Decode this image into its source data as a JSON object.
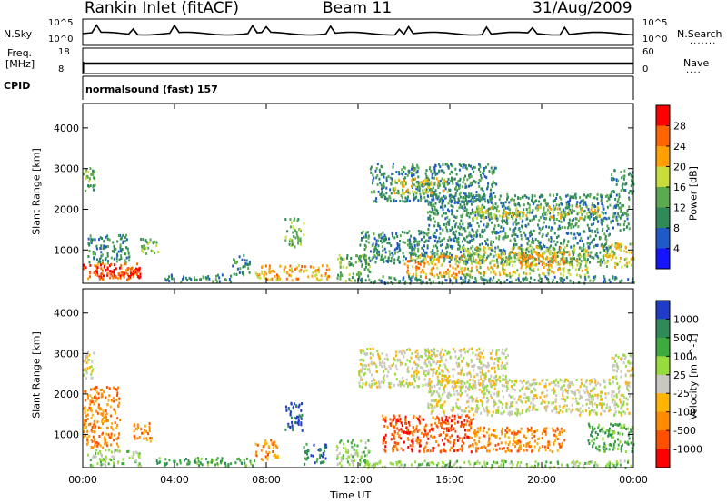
{
  "header": {
    "station": "Rankin Inlet (fitACF)",
    "beam": "Beam 11",
    "date": "31/Aug/2009"
  },
  "top_panels": {
    "nsky_label": "N.Sky",
    "nsky_max": "10^5",
    "nsky_min": "10^0",
    "nsearch_label": "N.Search",
    "nsearch_max": "10^5",
    "nsearch_min": "10^0",
    "freq_label": "Freq.",
    "freq_unit": "[MHz]",
    "freq_max": "18",
    "freq_min": "8",
    "nave_label": "Nave",
    "nave_max": "60",
    "nave_min": "0",
    "cpid_label": "CPID",
    "cpid_value": "normalsound (fast) 157"
  },
  "chart_data": [
    {
      "type": "heatmap",
      "name": "power",
      "ylabel": "Slant Range [km]",
      "xlabel": "",
      "x_ticks": [
        "00:00",
        "04:00",
        "08:00",
        "12:00",
        "16:00",
        "20:00",
        "00:00"
      ],
      "y_ticks": [
        1000,
        2000,
        3000,
        4000
      ],
      "ylim": [
        180,
        4600
      ],
      "xlim_hours": [
        0,
        24
      ],
      "colorbar": {
        "label": "Power [dB]",
        "ticks": [
          "4",
          "8",
          "12",
          "16",
          "20",
          "24",
          "28"
        ],
        "colors": [
          "#1414ff",
          "#1e5ac8",
          "#2e8b57",
          "#5aaa50",
          "#c8dc3c",
          "#ffa000",
          "#ff6400",
          "#ff0000"
        ]
      },
      "regions": [
        {
          "t0": 0.0,
          "t1": 0.5,
          "r0": 2400,
          "r1": 3100,
          "level": 3
        },
        {
          "t0": 0.0,
          "t1": 2.4,
          "r0": 300,
          "r1": 700,
          "level": 6
        },
        {
          "t0": 0.2,
          "t1": 2.0,
          "r0": 700,
          "r1": 1400,
          "level": 2
        },
        {
          "t0": 0.6,
          "t1": 2.6,
          "r0": 300,
          "r1": 600,
          "level": 7
        },
        {
          "t0": 2.5,
          "t1": 3.3,
          "r0": 900,
          "r1": 1300,
          "level": 3
        },
        {
          "t0": 3.5,
          "t1": 6.5,
          "r0": 250,
          "r1": 420,
          "level": 2
        },
        {
          "t0": 6.5,
          "t1": 7.3,
          "r0": 400,
          "r1": 900,
          "level": 2
        },
        {
          "t0": 7.5,
          "t1": 10.8,
          "r0": 280,
          "r1": 650,
          "level": 5
        },
        {
          "t0": 8.8,
          "t1": 9.6,
          "r0": 1100,
          "r1": 1800,
          "level": 3
        },
        {
          "t0": 11.0,
          "t1": 12.5,
          "r0": 250,
          "r1": 900,
          "level": 3
        },
        {
          "t0": 12.5,
          "t1": 18.0,
          "r0": 2200,
          "r1": 3150,
          "level": 2
        },
        {
          "t0": 13.5,
          "t1": 16.0,
          "r0": 2400,
          "r1": 2800,
          "level": 4
        },
        {
          "t0": 15.0,
          "t1": 23.8,
          "r0": 1500,
          "r1": 2400,
          "level": 2
        },
        {
          "t0": 17.0,
          "t1": 22.5,
          "r0": 1800,
          "r1": 2100,
          "level": 4
        },
        {
          "t0": 12.0,
          "t1": 23.0,
          "r0": 700,
          "r1": 1500,
          "level": 2
        },
        {
          "t0": 14.0,
          "t1": 16.5,
          "r0": 350,
          "r1": 900,
          "level": 5
        },
        {
          "t0": 16.5,
          "t1": 22.0,
          "r0": 400,
          "r1": 1100,
          "level": 4
        },
        {
          "t0": 19.0,
          "t1": 21.0,
          "r0": 600,
          "r1": 1000,
          "level": 5
        },
        {
          "t0": 22.5,
          "t1": 24.0,
          "r0": 600,
          "r1": 1200,
          "level": 4
        },
        {
          "t0": 23.0,
          "t1": 24.0,
          "r0": 2400,
          "r1": 3000,
          "level": 2
        },
        {
          "t0": 12.0,
          "t1": 24.0,
          "r0": 200,
          "r1": 380,
          "level": 2
        }
      ]
    },
    {
      "type": "heatmap",
      "name": "velocity",
      "ylabel": "Slant Range [km]",
      "xlabel": "Time UT",
      "x_ticks": [
        "00:00",
        "04:00",
        "08:00",
        "12:00",
        "16:00",
        "20:00",
        "00:00"
      ],
      "y_ticks": [
        1000,
        2000,
        3000,
        4000
      ],
      "ylim": [
        180,
        4600
      ],
      "xlim_hours": [
        0,
        24
      ],
      "colorbar": {
        "label": "Velocity [m s^-1]",
        "ticks": [
          "1000",
          "500",
          "100",
          "25",
          "-25",
          "-100",
          "-500",
          "-1000"
        ],
        "colors": [
          "#1e3cc8",
          "#2e8b57",
          "#3caa3c",
          "#96dc3c",
          "#c8c8c0",
          "#ffb400",
          "#ff8c00",
          "#ff5000",
          "#ff0000"
        ]
      },
      "regions": [
        {
          "t0": 0.0,
          "t1": 0.5,
          "r0": 2400,
          "r1": 3100,
          "level": 4
        },
        {
          "t0": 0.0,
          "t1": 1.6,
          "r0": 700,
          "r1": 2200,
          "level": 6
        },
        {
          "t0": 0.2,
          "t1": 2.5,
          "r0": 250,
          "r1": 650,
          "level": 3
        },
        {
          "t0": 2.2,
          "t1": 3.0,
          "r0": 850,
          "r1": 1300,
          "level": 6
        },
        {
          "t0": 3.0,
          "t1": 7.5,
          "r0": 250,
          "r1": 450,
          "level": 2
        },
        {
          "t0": 7.5,
          "t1": 8.5,
          "r0": 400,
          "r1": 900,
          "level": 6
        },
        {
          "t0": 8.8,
          "t1": 9.6,
          "r0": 1100,
          "r1": 1800,
          "level": 0
        },
        {
          "t0": 9.6,
          "t1": 10.6,
          "r0": 280,
          "r1": 800,
          "level": 1
        },
        {
          "t0": 11.0,
          "t1": 12.5,
          "r0": 250,
          "r1": 900,
          "level": 3
        },
        {
          "t0": 12.0,
          "t1": 18.5,
          "r0": 2200,
          "r1": 3150,
          "level": 4
        },
        {
          "t0": 15.0,
          "t1": 23.8,
          "r0": 1500,
          "r1": 2400,
          "level": 4
        },
        {
          "t0": 13.0,
          "t1": 17.0,
          "r0": 600,
          "r1": 1500,
          "level": 7
        },
        {
          "t0": 17.0,
          "t1": 21.0,
          "r0": 600,
          "r1": 1200,
          "level": 6
        },
        {
          "t0": 22.0,
          "t1": 24.0,
          "r0": 600,
          "r1": 1300,
          "level": 2
        },
        {
          "t0": 23.0,
          "t1": 24.0,
          "r0": 2400,
          "r1": 3000,
          "level": 4
        },
        {
          "t0": 12.0,
          "t1": 24.0,
          "r0": 200,
          "r1": 380,
          "level": 3
        }
      ]
    }
  ]
}
